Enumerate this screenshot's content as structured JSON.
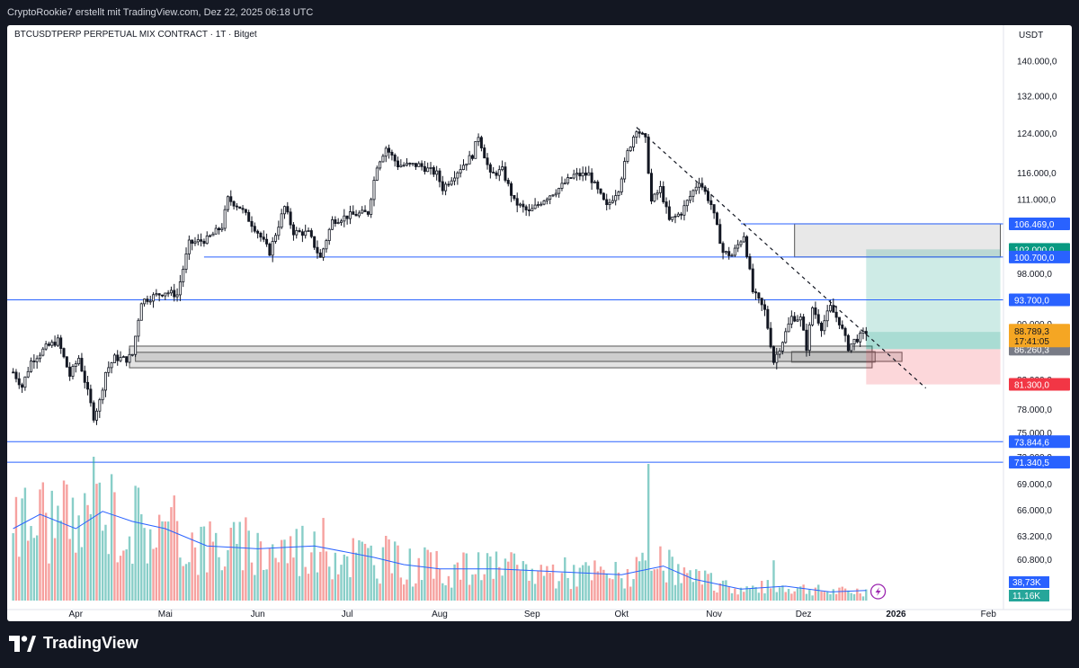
{
  "header": {
    "credit": "CryptoRookie7 erstellt mit TradingView.com, Dez 22, 2025 06:18 UTC"
  },
  "footer": {
    "brand": "TradingView",
    "logo_icon": "tradingview-logo-icon"
  },
  "colors": {
    "up": "#26a69a",
    "down": "#ef5350",
    "candle": "#131722",
    "blue_line": "#2962ff",
    "volume_ma": "#2962ff",
    "price_badge": "#f5a623",
    "target_badge": "#089981",
    "stop_badge": "#f23645",
    "gray_badge": "#787b86"
  },
  "chart_data": {
    "type": "candlestick",
    "title": "BTCUSDTPERP PERPETUAL MIX CONTRACT · 1T · Bitget",
    "currency": "USDT",
    "y_scale": "log",
    "y_ticks": [
      "140.000,0",
      "132.000,0",
      "124.000,0",
      "116.000,0",
      "111.000,0",
      "102.000,0",
      "98.000,0",
      "93.700,0",
      "90.000,0",
      "86.260,3",
      "82.000,0",
      "78.000,0",
      "75.000,0",
      "72.000,0",
      "69.000,0",
      "66.000,0",
      "63.200,0",
      "60.800,0"
    ],
    "x_ticks": [
      "Apr",
      "Mai",
      "Jun",
      "Jul",
      "Aug",
      "Sep",
      "Okt",
      "Nov",
      "Dez",
      "2026",
      "Feb"
    ],
    "price_path": [
      [
        "2025-03-11",
        83000
      ],
      [
        "2025-03-14",
        81000
      ],
      [
        "2025-03-17",
        84500
      ],
      [
        "2025-03-22",
        86500
      ],
      [
        "2025-03-26",
        87500
      ],
      [
        "2025-03-30",
        82500
      ],
      [
        "2025-04-02",
        85000
      ],
      [
        "2025-04-07",
        77000
      ],
      [
        "2025-04-09",
        79000
      ],
      [
        "2025-04-11",
        83000
      ],
      [
        "2025-04-14",
        85000
      ],
      [
        "2025-04-18",
        84800
      ],
      [
        "2025-04-20",
        85500
      ],
      [
        "2025-04-23",
        93500
      ],
      [
        "2025-05-01",
        95000
      ],
      [
        "2025-05-05",
        94500
      ],
      [
        "2025-05-09",
        103000
      ],
      [
        "2025-05-15",
        103700
      ],
      [
        "2025-05-20",
        106000
      ],
      [
        "2025-05-22",
        111000
      ],
      [
        "2025-05-26",
        109500
      ],
      [
        "2025-06-01",
        105000
      ],
      [
        "2025-06-05",
        101500
      ],
      [
        "2025-06-10",
        109500
      ],
      [
        "2025-06-13",
        105000
      ],
      [
        "2025-06-18",
        104800
      ],
      [
        "2025-06-22",
        100500
      ],
      [
        "2025-06-26",
        107000
      ],
      [
        "2025-07-02",
        108000
      ],
      [
        "2025-07-08",
        108500
      ],
      [
        "2025-07-11",
        117500
      ],
      [
        "2025-07-14",
        121000
      ],
      [
        "2025-07-18",
        117500
      ],
      [
        "2025-07-25",
        117500
      ],
      [
        "2025-07-31",
        115800
      ],
      [
        "2025-08-02",
        113000
      ],
      [
        "2025-08-08",
        117000
      ],
      [
        "2025-08-12",
        119500
      ],
      [
        "2025-08-14",
        123500
      ],
      [
        "2025-08-18",
        115500
      ],
      [
        "2025-08-22",
        116500
      ],
      [
        "2025-08-26",
        110500
      ],
      [
        "2025-08-31",
        108500
      ],
      [
        "2025-09-05",
        111000
      ],
      [
        "2025-09-10",
        113000
      ],
      [
        "2025-09-15",
        115500
      ],
      [
        "2025-09-20",
        115700
      ],
      [
        "2025-09-23",
        112500
      ],
      [
        "2025-09-26",
        109500
      ],
      [
        "2025-09-30",
        113000
      ],
      [
        "2025-10-03",
        120000
      ],
      [
        "2025-10-06",
        125000
      ],
      [
        "2025-10-09",
        122500
      ],
      [
        "2025-10-11",
        110500
      ],
      [
        "2025-10-14",
        113000
      ],
      [
        "2025-10-17",
        107000
      ],
      [
        "2025-10-21",
        108500
      ],
      [
        "2025-10-27",
        114500
      ],
      [
        "2025-10-31",
        110000
      ],
      [
        "2025-11-04",
        101500
      ],
      [
        "2025-11-07",
        101000
      ],
      [
        "2025-11-11",
        104500
      ],
      [
        "2025-11-14",
        95000
      ],
      [
        "2025-11-18",
        92000
      ],
      [
        "2025-11-21",
        84500
      ],
      [
        "2025-11-24",
        87500
      ],
      [
        "2025-11-27",
        91000
      ],
      [
        "2025-11-30",
        90800
      ],
      [
        "2025-12-02",
        86500
      ],
      [
        "2025-12-04",
        92500
      ],
      [
        "2025-12-07",
        89500
      ],
      [
        "2025-12-10",
        92500
      ],
      [
        "2025-12-13",
        90300
      ],
      [
        "2025-12-16",
        86500
      ],
      [
        "2025-12-18",
        87500
      ],
      [
        "2025-12-20",
        88100
      ],
      [
        "2025-12-22",
        88789
      ]
    ],
    "last_price": {
      "value": "88.789,3",
      "countdown": "17:41:05"
    },
    "horizontal_levels": [
      {
        "value": 106469,
        "label": "106.469,0"
      },
      {
        "value": 100700,
        "label": "100.700,0"
      },
      {
        "value": 93700,
        "label": "93.700,0"
      },
      {
        "value": 73844.6,
        "label": "73.844,6"
      },
      {
        "value": 71340.5,
        "label": "71.340,5"
      }
    ],
    "trade_setup": {
      "entry": {
        "value": 86260.3,
        "label": "86.260,3"
      },
      "target": {
        "value": 102000,
        "label": "102.000,0"
      },
      "stop": {
        "value": 81300,
        "label": "81.300,0"
      },
      "from": "2025-12-22",
      "to": "2026-02-05"
    },
    "zones": [
      {
        "from": "2025-04-19",
        "to": "2025-12-24",
        "low": 83600,
        "high": 86700
      },
      {
        "from": "2025-04-21",
        "to": "2026-01-03",
        "low": 84500,
        "high": 85800
      },
      {
        "from": "2025-11-27",
        "to": "2025-12-25",
        "low": 84400,
        "high": 85900
      },
      {
        "from": "2025-11-28",
        "to": "2026-02-05",
        "low": 100700,
        "high": 106469
      }
    ],
    "trendline": {
      "from": [
        "2025-10-06",
        125200
      ],
      "to": [
        "2026-01-11",
        80800
      ]
    },
    "volume": {
      "labels": [
        "38,73K",
        "11,16K"
      ],
      "ma_path": [
        [
          "2025-03-11",
          0.5
        ],
        [
          "2025-03-20",
          0.6
        ],
        [
          "2025-04-01",
          0.5
        ],
        [
          "2025-04-10",
          0.62
        ],
        [
          "2025-04-20",
          0.55
        ],
        [
          "2025-05-01",
          0.5
        ],
        [
          "2025-05-15",
          0.38
        ],
        [
          "2025-06-01",
          0.36
        ],
        [
          "2025-06-20",
          0.38
        ],
        [
          "2025-07-10",
          0.3
        ],
        [
          "2025-07-20",
          0.25
        ],
        [
          "2025-08-01",
          0.22
        ],
        [
          "2025-08-20",
          0.22
        ],
        [
          "2025-09-10",
          0.2
        ],
        [
          "2025-10-01",
          0.18
        ],
        [
          "2025-10-15",
          0.24
        ],
        [
          "2025-10-25",
          0.15
        ],
        [
          "2025-11-10",
          0.08
        ],
        [
          "2025-11-25",
          0.1
        ],
        [
          "2025-12-10",
          0.06
        ],
        [
          "2025-12-22",
          0.07
        ]
      ],
      "spikes": [
        [
          "2025-04-07",
          1.0
        ],
        [
          "2025-04-09",
          0.82
        ],
        [
          "2025-03-12",
          0.72
        ],
        [
          "2025-04-23",
          0.6
        ],
        [
          "2025-10-10",
          0.95
        ],
        [
          "2025-05-01",
          0.55
        ],
        [
          "2025-06-20",
          0.48
        ],
        [
          "2025-07-14",
          0.45
        ],
        [
          "2025-08-17",
          0.33
        ],
        [
          "2025-11-21",
          0.28
        ]
      ]
    }
  }
}
